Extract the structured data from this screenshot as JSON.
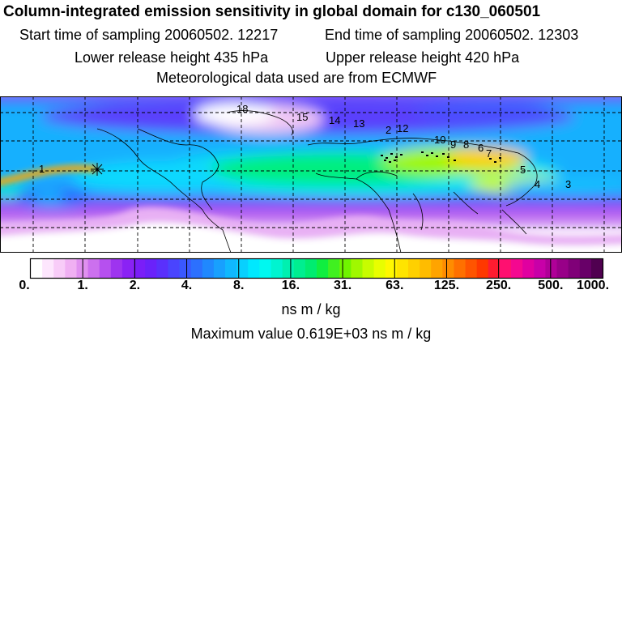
{
  "title": "Column-integrated emission sensitivity in global domain for c130_060501",
  "start_time": "Start time of sampling 20060502. 12217",
  "end_time": "End time of sampling 20060502. 12303",
  "lower_height": "Lower release height  435 hPa",
  "upper_height": "Upper release height  420 hPa",
  "met_data": "Meteorological data used are from ECMWF",
  "colorbar": {
    "labels": [
      "0.",
      "1.",
      "2.",
      "4.",
      "8.",
      "16.",
      "31.",
      "63.",
      "125.",
      "250.",
      "500.",
      "1000."
    ],
    "colors": [
      "#ffffff",
      "#fde6fd",
      "#f8ccf8",
      "#f0b0f3",
      "#e090f0",
      "#cc70ee",
      "#b650ef",
      "#9e34ef",
      "#8a22f4",
      "#7a1ef8",
      "#6a22fa",
      "#5a30fc",
      "#4a44fe",
      "#3a58fe",
      "#2c70fe",
      "#2088fe",
      "#18a0fe",
      "#10b8fe",
      "#08d0fe",
      "#00e8fe",
      "#00f8f0",
      "#00f4d0",
      "#00f0b0",
      "#00ee90",
      "#00ec70",
      "#10ee40",
      "#40f020",
      "#70f400",
      "#a0f800",
      "#c8fc00",
      "#e8fe00",
      "#fff800",
      "#ffe400",
      "#ffd000",
      "#ffbc00",
      "#ffa400",
      "#ff8c00",
      "#ff7000",
      "#ff5400",
      "#ff3800",
      "#ff1c30",
      "#ff1070",
      "#f40890",
      "#e000a0",
      "#c800a8",
      "#b00098",
      "#980088",
      "#800078",
      "#680068",
      "#500050"
    ]
  },
  "units": "ns m / kg",
  "max_value": "Maximum value  0.619E+03 ns m / kg",
  "map": {
    "contour_labels": [
      "1",
      "2",
      "3",
      "4",
      "5",
      "6",
      "7",
      "8",
      "9",
      "10",
      "12",
      "13",
      "14",
      "15",
      "18"
    ]
  }
}
